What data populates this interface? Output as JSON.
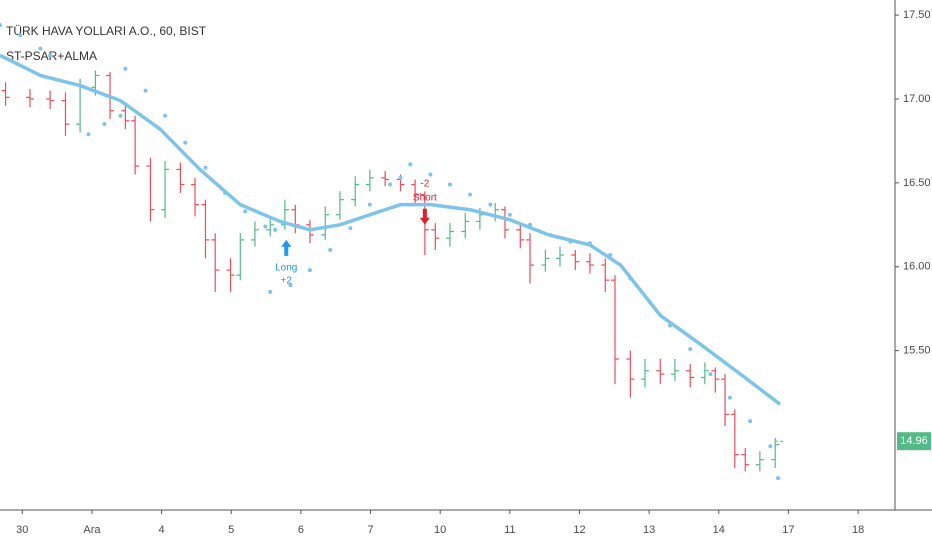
{
  "chart_data": {
    "type": "ohlc",
    "title": "TÜRK HAVA YOLLARI A.O., 60, BIST",
    "subtitle": "ST-PSAR+ALMA",
    "up_color": "#53b987",
    "down_color": "#eb4d5c",
    "x": [
      -0.24,
      0.11,
      0.4,
      0.62,
      0.83,
      1.05,
      1.26,
      1.48,
      1.62,
      1.84,
      2.05,
      2.27,
      2.48,
      2.63,
      2.77,
      2.99,
      3.13,
      3.34,
      3.56,
      3.77,
      3.92,
      4.13,
      4.35,
      4.56,
      4.78,
      4.99,
      5.21,
      5.43,
      5.64,
      5.78,
      5.93,
      6.14,
      6.36,
      6.57,
      6.79,
      6.93,
      7.15,
      7.29,
      7.51,
      7.72,
      7.94,
      8.15,
      8.37,
      8.51,
      8.73,
      8.94,
      9.16,
      9.37,
      9.59,
      9.8,
      9.95,
      10.09,
      10.23,
      10.38,
      10.59,
      10.81
    ],
    "open": [
      17.05,
      17.01,
      17.0,
      16.99,
      16.85,
      17.07,
      17.14,
      16.93,
      16.87,
      16.6,
      16.34,
      16.58,
      16.49,
      16.37,
      16.16,
      15.98,
      15.95,
      16.16,
      16.22,
      16.25,
      16.34,
      16.25,
      16.19,
      16.31,
      16.4,
      16.49,
      16.53,
      16.52,
      16.49,
      16.43,
      16.22,
      16.17,
      16.21,
      16.27,
      16.31,
      16.34,
      16.22,
      16.16,
      16.01,
      16.05,
      16.07,
      16.03,
      16.01,
      15.92,
      15.45,
      15.33,
      15.38,
      15.36,
      15.38,
      15.34,
      15.38,
      15.33,
      15.12,
      14.88,
      14.82,
      14.85
    ],
    "high": [
      17.1,
      17.06,
      17.05,
      17.04,
      17.12,
      17.17,
      17.16,
      16.98,
      16.9,
      16.65,
      16.63,
      16.62,
      16.53,
      16.4,
      16.2,
      16.05,
      16.2,
      16.27,
      16.3,
      16.4,
      16.37,
      16.28,
      16.36,
      16.45,
      16.54,
      16.58,
      16.57,
      16.55,
      16.52,
      16.45,
      16.26,
      16.26,
      16.32,
      16.35,
      16.38,
      16.36,
      16.26,
      16.2,
      16.1,
      16.12,
      16.1,
      16.08,
      16.05,
      15.95,
      15.5,
      15.45,
      15.45,
      15.45,
      15.42,
      15.43,
      15.4,
      15.36,
      15.15,
      14.92,
      14.9,
      14.98
    ],
    "low": [
      16.96,
      16.95,
      16.94,
      16.78,
      16.8,
      17.02,
      16.88,
      16.82,
      16.55,
      16.27,
      16.29,
      16.44,
      16.3,
      16.05,
      15.85,
      15.85,
      15.92,
      16.12,
      16.18,
      16.22,
      16.2,
      16.14,
      16.16,
      16.28,
      16.36,
      16.45,
      16.48,
      16.45,
      16.38,
      16.07,
      16.1,
      16.12,
      16.17,
      16.22,
      16.27,
      16.17,
      16.11,
      15.9,
      15.97,
      16.0,
      15.98,
      15.96,
      15.85,
      15.3,
      15.22,
      15.28,
      15.3,
      15.32,
      15.28,
      15.3,
      15.25,
      15.05,
      14.8,
      14.78,
      14.78,
      14.8
    ],
    "close": [
      17.01,
      17.0,
      16.99,
      16.85,
      17.07,
      17.14,
      16.93,
      16.87,
      16.6,
      16.34,
      16.58,
      16.49,
      16.37,
      16.16,
      15.98,
      15.95,
      16.16,
      16.22,
      16.25,
      16.34,
      16.25,
      16.19,
      16.31,
      16.4,
      16.49,
      16.53,
      16.52,
      16.49,
      16.43,
      16.22,
      16.17,
      16.21,
      16.27,
      16.31,
      16.34,
      16.22,
      16.16,
      16.01,
      16.05,
      16.07,
      16.03,
      16.01,
      15.92,
      15.45,
      15.33,
      15.38,
      15.36,
      15.38,
      15.34,
      15.38,
      15.33,
      15.12,
      14.88,
      14.82,
      14.85,
      14.94
    ],
    "overlays": [
      {
        "type": "line",
        "color": "#7dc4ea",
        "x": [
          -0.32,
          0.26,
          0.83,
          1.41,
          1.98,
          2.55,
          3.13,
          3.7,
          4.13,
          4.56,
          4.99,
          5.43,
          5.86,
          6.43,
          7.0,
          7.56,
          8.15,
          8.59,
          9.16,
          9.73,
          10.31,
          10.88
        ],
        "values": [
          17.26,
          17.14,
          17.08,
          16.99,
          16.82,
          16.58,
          16.37,
          16.27,
          16.22,
          16.25,
          16.31,
          16.37,
          16.37,
          16.34,
          16.28,
          16.19,
          16.13,
          16.01,
          15.71,
          15.54,
          15.36,
          15.18
        ]
      },
      {
        "type": "scatter",
        "color": "#7dc4ea",
        "x": [
          -0.32,
          -0.03,
          0.26,
          0.4,
          0.95,
          1.18,
          1.41,
          1.48,
          1.77,
          2.05,
          2.34,
          2.63,
          2.91,
          3.2,
          3.49,
          3.63,
          3.56,
          3.85,
          4.13,
          4.42,
          4.71,
          4.99,
          5.28,
          5.43,
          5.57,
          5.86,
          6.14,
          6.43,
          6.72,
          7.0,
          7.29,
          7.58,
          7.87,
          8.15,
          8.44,
          8.73,
          9.01,
          9.3,
          9.59,
          9.88,
          10.16,
          10.45,
          10.74,
          10.85
        ],
        "values": [
          17.44,
          17.38,
          17.3,
          17.26,
          16.79,
          16.85,
          16.9,
          17.18,
          17.05,
          16.9,
          16.74,
          16.59,
          16.44,
          16.33,
          16.24,
          16.22,
          15.85,
          15.89,
          15.98,
          16.1,
          16.23,
          16.37,
          16.49,
          16.53,
          16.61,
          16.55,
          16.49,
          16.43,
          16.37,
          16.31,
          16.25,
          16.19,
          16.15,
          16.14,
          16.07,
          15.93,
          15.79,
          15.65,
          15.51,
          15.36,
          15.22,
          15.08,
          14.93,
          14.74
        ]
      }
    ],
    "signals": [
      {
        "label": "Long",
        "qty": "+2",
        "direction": "up",
        "color": "#2196f3",
        "x": 3.79,
        "price": 16.16
      },
      {
        "label": "Short",
        "qty": "-2",
        "direction": "down",
        "color": "#e0202b",
        "x": 5.78,
        "price": 16.25
      }
    ],
    "last_price": 14.96,
    "xlim": [
      -0.32,
      12.53
    ],
    "ylim": [
      14.55,
      17.59
    ],
    "xticks": [
      {
        "value": 0,
        "label": "30"
      },
      {
        "value": 1,
        "label": "Ara"
      },
      {
        "value": 2,
        "label": "4"
      },
      {
        "value": 3,
        "label": "5"
      },
      {
        "value": 4,
        "label": "6"
      },
      {
        "value": 5,
        "label": "7"
      },
      {
        "value": 6,
        "label": "10"
      },
      {
        "value": 7,
        "label": "11"
      },
      {
        "value": 8,
        "label": "12"
      },
      {
        "value": 9,
        "label": "13"
      },
      {
        "value": 10,
        "label": "14"
      },
      {
        "value": 11,
        "label": "17"
      },
      {
        "value": 12,
        "label": "18"
      }
    ],
    "yticks": [
      {
        "value": 15.5,
        "label": "15.50"
      },
      {
        "value": 16,
        "label": "16.00"
      },
      {
        "value": 16.5,
        "label": "16.50"
      },
      {
        "value": 17,
        "label": "17.00"
      },
      {
        "value": 17.5,
        "label": "17.50"
      }
    ]
  }
}
